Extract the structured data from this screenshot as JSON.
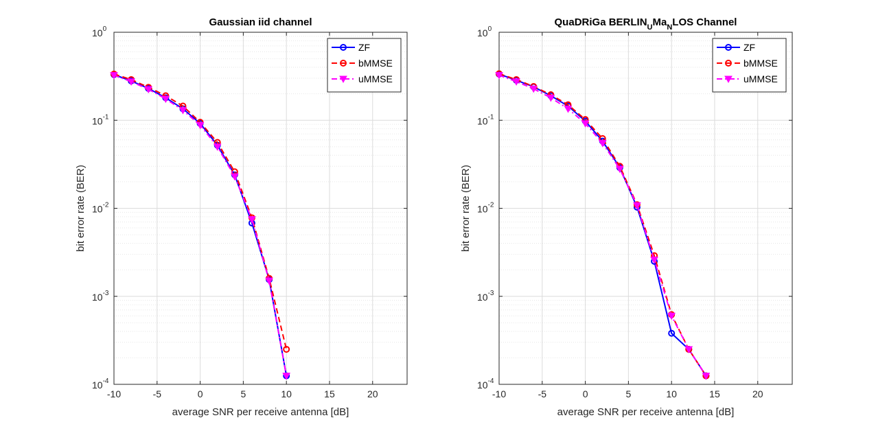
{
  "chart_data": [
    {
      "type": "line",
      "title": "Gaussian iid channel",
      "xlabel": "average SNR per receive antenna [dB]",
      "ylabel": "bit error rate (BER)",
      "xlim": [
        -10,
        24
      ],
      "ylim": [
        0.0001,
        1
      ],
      "yscale": "log",
      "grid": true,
      "legend_position": "top-right",
      "xticks": [
        "-10",
        "-5",
        "0",
        "5",
        "10",
        "15",
        "20"
      ],
      "yticks": [
        {
          "base": "10",
          "exp": "-4"
        },
        {
          "base": "10",
          "exp": "-3"
        },
        {
          "base": "10",
          "exp": "-2"
        },
        {
          "base": "10",
          "exp": "-1"
        },
        {
          "base": "10",
          "exp": "0"
        }
      ],
      "series": [
        {
          "name": "ZF",
          "color": "#0000ff",
          "dash": "solid",
          "marker": "circle",
          "x": [
            -10,
            -8,
            -6,
            -4,
            -2,
            0,
            2,
            4,
            6,
            8,
            10
          ],
          "y": [
            0.33,
            0.28,
            0.23,
            0.18,
            0.135,
            0.092,
            0.052,
            0.024,
            0.0068,
            0.00155,
            0.000125
          ]
        },
        {
          "name": "bMMSE",
          "color": "#ff0000",
          "dash": "dash",
          "marker": "circle",
          "x": [
            -10,
            -8,
            -6,
            -4,
            -2,
            0,
            2,
            4,
            6,
            8,
            10
          ],
          "y": [
            0.335,
            0.29,
            0.237,
            0.19,
            0.145,
            0.095,
            0.056,
            0.026,
            0.0078,
            0.0016,
            0.00025
          ]
        },
        {
          "name": "uMMSE",
          "color": "#ff00ff",
          "dash": "dashdot",
          "marker": "triangle-down",
          "x": [
            -10,
            -8,
            -6,
            -4,
            -2,
            0,
            2,
            4,
            6,
            8,
            10
          ],
          "y": [
            0.325,
            0.275,
            0.225,
            0.175,
            0.13,
            0.088,
            0.05,
            0.023,
            0.0075,
            0.0015,
            0.000125
          ]
        }
      ]
    },
    {
      "type": "line",
      "title": "QuaDRiGa BERLIN_UMa_NLOS Channel",
      "title_parts": [
        "QuaDRiGa BERLIN",
        "U",
        "Ma",
        "N",
        "LOS Channel"
      ],
      "xlabel": "average SNR per receive antenna [dB]",
      "ylabel": "bit error rate (BER)",
      "xlim": [
        -10,
        24
      ],
      "ylim": [
        0.0001,
        1
      ],
      "yscale": "log",
      "grid": true,
      "legend_position": "top-right",
      "xticks": [
        "-10",
        "-5",
        "0",
        "5",
        "10",
        "15",
        "20"
      ],
      "yticks": [
        {
          "base": "10",
          "exp": "-4"
        },
        {
          "base": "10",
          "exp": "-3"
        },
        {
          "base": "10",
          "exp": "-2"
        },
        {
          "base": "10",
          "exp": "-1"
        },
        {
          "base": "10",
          "exp": "0"
        }
      ],
      "series": [
        {
          "name": "ZF",
          "color": "#0000ff",
          "dash": "solid",
          "marker": "circle",
          "x": [
            -10,
            -8,
            -6,
            -4,
            -2,
            0,
            2,
            4,
            6,
            8,
            10,
            12,
            14
          ],
          "y": [
            0.335,
            0.285,
            0.24,
            0.19,
            0.145,
            0.098,
            0.058,
            0.029,
            0.0103,
            0.0025,
            0.00038,
            0.00025,
            0.000125
          ]
        },
        {
          "name": "bMMSE",
          "color": "#ff0000",
          "dash": "dash",
          "marker": "circle",
          "x": [
            -10,
            -8,
            -6,
            -4,
            -2,
            0,
            2,
            4,
            6,
            8,
            10,
            12,
            14
          ],
          "y": [
            0.338,
            0.29,
            0.242,
            0.195,
            0.15,
            0.102,
            0.062,
            0.03,
            0.011,
            0.0029,
            0.00062,
            0.00025,
            0.000125
          ]
        },
        {
          "name": "uMMSE",
          "color": "#ff00ff",
          "dash": "dashdot",
          "marker": "triangle-down",
          "x": [
            -10,
            -8,
            -6,
            -4,
            -2,
            0,
            2,
            4,
            6,
            8,
            10,
            12,
            14
          ],
          "y": [
            0.325,
            0.275,
            0.228,
            0.18,
            0.135,
            0.092,
            0.055,
            0.028,
            0.0108,
            0.0026,
            0.0006,
            0.00025,
            0.000125
          ]
        }
      ]
    }
  ]
}
